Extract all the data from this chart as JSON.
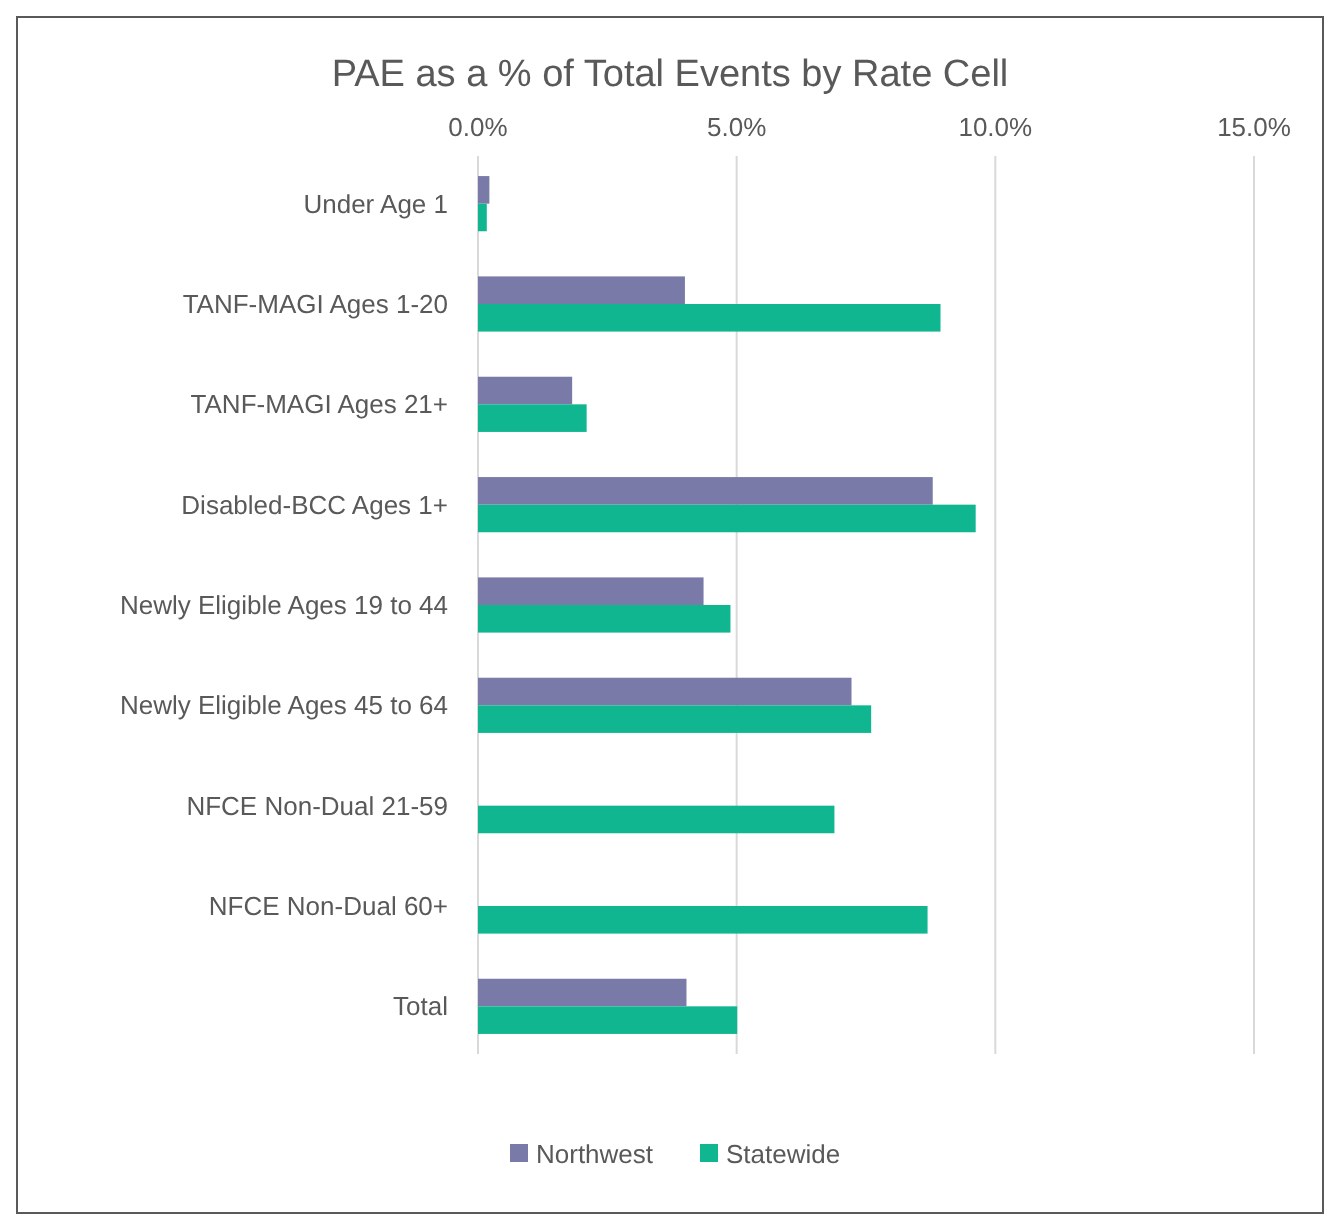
{
  "chart_data": {
    "type": "bar",
    "orientation": "horizontal",
    "title": "PAE as a % of Total Events by Rate Cell",
    "categories": [
      "Under Age 1",
      "TANF-MAGI Ages 1-20",
      "TANF-MAGI Ages 21+",
      "Disabled-BCC Ages 1+",
      "Newly Eligible Ages 19 to 44",
      "Newly Eligible Ages 45 to 64",
      "NFCE Non-Dual 21-59",
      "NFCE Non-Dual 60+",
      "Total"
    ],
    "series": [
      {
        "name": "Northwest",
        "color": "#7a7aa8",
        "values": [
          0.22,
          4.0,
          1.82,
          8.79,
          4.36,
          7.22,
          null,
          null,
          4.03
        ]
      },
      {
        "name": "Statewide",
        "color": "#10b690",
        "values": [
          0.17,
          8.94,
          2.1,
          9.62,
          4.88,
          7.6,
          6.89,
          8.69,
          5.01
        ]
      }
    ],
    "xlim": [
      0,
      15
    ],
    "xticks": [
      {
        "value": 0,
        "label": "0.0%"
      },
      {
        "value": 5,
        "label": "5.0%"
      },
      {
        "value": 10,
        "label": "10.0%"
      },
      {
        "value": 15,
        "label": "15.0%"
      }
    ],
    "grid": "x",
    "legend": "bottom"
  }
}
